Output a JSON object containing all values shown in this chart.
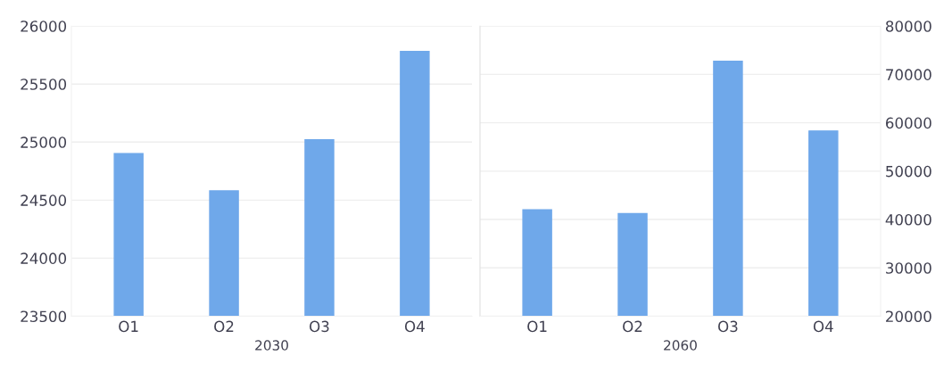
{
  "chart_data": [
    {
      "type": "bar",
      "xlabel": "2030",
      "categories": [
        "O1",
        "O2",
        "O3",
        "O4"
      ],
      "series": [
        {
          "color": "#6fa8ea",
          "values": [
            24900,
            24580,
            25020,
            25780
          ]
        }
      ],
      "ylim": [
        23500,
        26000
      ],
      "yticks": [
        23500,
        24000,
        24500,
        25000,
        25500,
        26000
      ],
      "grid": "y"
    },
    {
      "type": "bar",
      "xlabel": "2060",
      "categories": [
        "O1",
        "O2",
        "O3",
        "O4"
      ],
      "series": [
        {
          "color": "#6fa8ea",
          "values": [
            42000,
            41200,
            72700,
            58300
          ],
          "axis": "y2"
        }
      ],
      "y2lim": [
        20000,
        80000
      ],
      "y2ticks": [
        20000,
        30000,
        40000,
        50000,
        60000,
        70000,
        80000
      ],
      "grid": "y"
    }
  ]
}
